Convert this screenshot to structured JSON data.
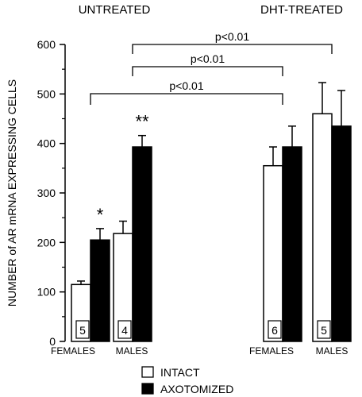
{
  "chart_data": {
    "type": "bar",
    "group_labels": [
      "UNTREATED",
      "DHT-TREATED"
    ],
    "categories": [
      "FEMALES",
      "MALES",
      "FEMALES",
      "MALES"
    ],
    "ylabel": "NUMBER of AR mRNA EXPRESSING CELLS",
    "ylim": [
      0,
      600
    ],
    "yticks": [
      0,
      100,
      200,
      300,
      400,
      500,
      600
    ],
    "series": [
      {
        "name": "INTACT",
        "color": "#ffffff",
        "values": [
          115,
          218,
          355,
          460
        ],
        "errors": [
          7,
          25,
          38,
          63
        ]
      },
      {
        "name": "AXOTOMIZED",
        "color": "#000000",
        "values": [
          205,
          393,
          393,
          435
        ],
        "errors": [
          23,
          23,
          42,
          72
        ]
      }
    ],
    "n_labels": [
      "5",
      "4",
      "6",
      "5"
    ],
    "significance_marks": [
      "*",
      "**",
      "",
      ""
    ],
    "comparisons": [
      {
        "label": "p<0.01",
        "from": 1,
        "to": 3
      },
      {
        "label": "p<0.01",
        "from": 1,
        "to": 2
      },
      {
        "label": "p<0.01",
        "from": 0,
        "to": 2
      }
    ],
    "legend_position": "bottom-center"
  }
}
